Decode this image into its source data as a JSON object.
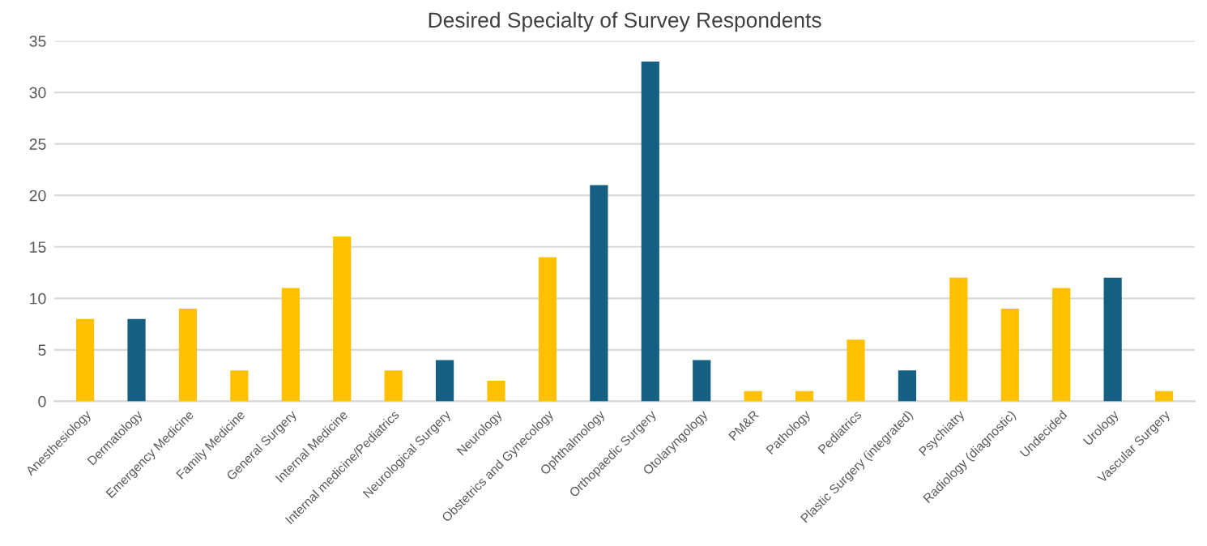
{
  "chart_data": {
    "type": "bar",
    "title": "Desired Specialty of Survey Respondents",
    "categories": [
      "Anesthesiology",
      "Dermatology",
      "Emergency Medicine",
      "Family Medicine",
      "General Surgery",
      "Internal Medicine",
      "Internal medicine/Pediatrics",
      "Neurological Surgery",
      "Neurology",
      "Obstetrics and Gynecology",
      "Ophthalmology",
      "Orthopaedic Surgery",
      "Otolaryngology",
      "PM&R",
      "Pathology",
      "Pediatrics",
      "Plastic Surgery (integrated)",
      "Psychiatry",
      "Radiology (diagnostic)",
      "Undecided",
      "Urology",
      "Vascular Surgery"
    ],
    "values": [
      8,
      8,
      9,
      3,
      11,
      16,
      3,
      4,
      2,
      14,
      21,
      33,
      4,
      1,
      1,
      6,
      3,
      12,
      9,
      11,
      12,
      1
    ],
    "colors": [
      "#ffc000",
      "#156082",
      "#ffc000",
      "#ffc000",
      "#ffc000",
      "#ffc000",
      "#ffc000",
      "#156082",
      "#ffc000",
      "#ffc000",
      "#156082",
      "#156082",
      "#156082",
      "#ffc000",
      "#ffc000",
      "#ffc000",
      "#156082",
      "#ffc000",
      "#ffc000",
      "#ffc000",
      "#156082",
      "#ffc000"
    ],
    "ylim": [
      0,
      35
    ],
    "yticks": [
      0,
      5,
      10,
      15,
      20,
      25,
      30,
      35
    ],
    "grid": "y"
  }
}
